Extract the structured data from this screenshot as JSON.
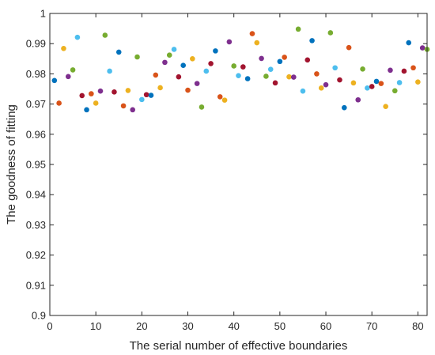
{
  "chart_data": {
    "type": "scatter",
    "xlabel": "The serial number of effective boundaries",
    "ylabel": "The goodness of fitting",
    "xlim": [
      0,
      82
    ],
    "ylim": [
      0.9,
      1.0
    ],
    "xticks": [
      0,
      10,
      20,
      30,
      40,
      50,
      60,
      70,
      80
    ],
    "yticks": [
      0.9,
      0.91,
      0.92,
      0.93,
      0.94,
      0.95,
      0.96,
      0.97,
      0.98,
      0.99,
      1.0
    ],
    "ytick_labels": [
      "0.9",
      "0.91",
      "0.92",
      "0.93",
      "0.94",
      "0.95",
      "0.96",
      "0.97",
      "0.98",
      "0.99",
      "1"
    ],
    "grid": false,
    "colors": [
      "#0072BD",
      "#D95319",
      "#EDB120",
      "#7E2F8E",
      "#77AC30",
      "#4DBEEE",
      "#A2142F"
    ],
    "x": [
      1,
      2,
      3,
      4,
      5,
      6,
      7,
      8,
      9,
      10,
      11,
      12,
      13,
      14,
      15,
      16,
      17,
      18,
      19,
      20,
      21,
      22,
      23,
      24,
      25,
      26,
      27,
      28,
      29,
      30,
      31,
      32,
      33,
      34,
      35,
      36,
      37,
      38,
      39,
      40,
      41,
      42,
      43,
      44,
      45,
      46,
      47,
      48,
      49,
      50,
      51,
      52,
      53,
      54,
      55,
      56,
      57,
      58,
      59,
      60,
      61,
      62,
      63,
      64,
      65,
      66,
      67,
      68,
      69,
      70,
      71,
      72,
      73,
      74,
      75,
      76,
      77,
      78,
      79,
      80,
      81,
      82
    ],
    "y": [
      0.9778,
      0.9703,
      0.9884,
      0.9791,
      0.9813,
      0.9921,
      0.9728,
      0.9681,
      0.9734,
      0.9703,
      0.9743,
      0.9928,
      0.9809,
      0.974,
      0.9872,
      0.9694,
      0.9745,
      0.9681,
      0.9856,
      0.9715,
      0.9731,
      0.9729,
      0.9796,
      0.9754,
      0.9838,
      0.9862,
      0.9881,
      0.979,
      0.9828,
      0.9746,
      0.985,
      0.9768,
      0.969,
      0.9809,
      0.9834,
      0.9876,
      0.9724,
      0.9713,
      0.9906,
      0.9826,
      0.9794,
      0.9823,
      0.9784,
      0.9933,
      0.9903,
      0.9851,
      0.9792,
      0.9815,
      0.977,
      0.9841,
      0.9855,
      0.979,
      0.9789,
      0.9948,
      0.9743,
      0.9846,
      0.991,
      0.98,
      0.9753,
      0.9764,
      0.9936,
      0.982,
      0.978,
      0.9688,
      0.9887,
      0.977,
      0.9714,
      0.9816,
      0.9753,
      0.9758,
      0.9775,
      0.9768,
      0.9692,
      0.9812,
      0.9744,
      0.9771,
      0.9809,
      0.9903,
      0.982,
      0.9773,
      0.9886,
      0.9881
    ],
    "point_colors": [
      0,
      1,
      2,
      3,
      4,
      5,
      6,
      0,
      1,
      2,
      3,
      4,
      5,
      6,
      0,
      1,
      2,
      3,
      4,
      5,
      6,
      0,
      1,
      2,
      3,
      4,
      5,
      6,
      0,
      1,
      2,
      3,
      4,
      5,
      6,
      0,
      1,
      2,
      3,
      4,
      5,
      6,
      0,
      1,
      2,
      3,
      4,
      5,
      6,
      0,
      1,
      2,
      3,
      4,
      5,
      6,
      0,
      1,
      2,
      3,
      4,
      5,
      6,
      0,
      1,
      2,
      3,
      4,
      5,
      6,
      0,
      1,
      2,
      3,
      4,
      5,
      6,
      0,
      1,
      2,
      3,
      4
    ]
  }
}
